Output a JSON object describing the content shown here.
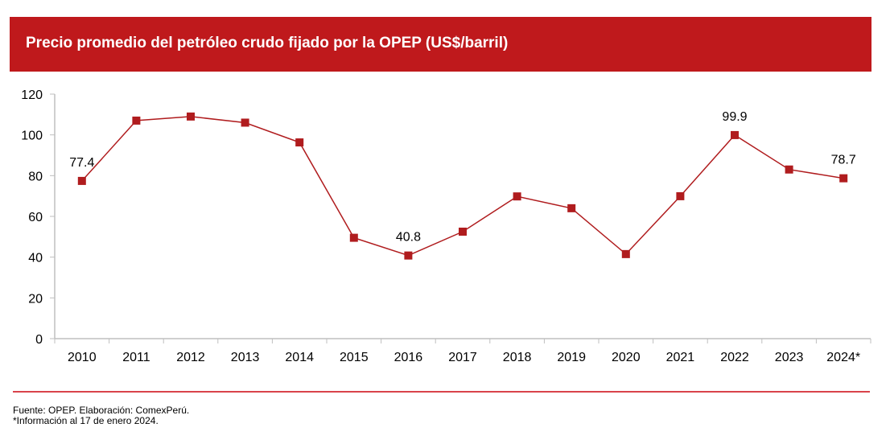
{
  "header": {
    "title": "Precio promedio del petróleo crudo fijado por la OPEP (US$/barril)"
  },
  "chart_data": {
    "type": "line",
    "title": "Precio promedio del petróleo crudo fijado por la OPEP (US$/barril)",
    "xlabel": "",
    "ylabel": "",
    "categories": [
      "2010",
      "2011",
      "2012",
      "2013",
      "2014",
      "2015",
      "2016",
      "2017",
      "2018",
      "2019",
      "2020",
      "2021",
      "2022",
      "2023",
      "2024*"
    ],
    "series": [
      {
        "name": "Precio promedio OPEP (US$/barril)",
        "values": [
          77.4,
          107.0,
          109.0,
          106.0,
          96.3,
          49.5,
          40.8,
          52.5,
          69.8,
          64.0,
          41.5,
          69.9,
          99.9,
          83.0,
          78.7
        ],
        "color": "#b01c1e",
        "marker": "square"
      }
    ],
    "data_labels": [
      {
        "category": "2010",
        "text": "77.4"
      },
      {
        "category": "2016",
        "text": "40.8"
      },
      {
        "category": "2022",
        "text": "99.9"
      },
      {
        "category": "2024*",
        "text": "78.7"
      }
    ],
    "ylim": [
      0,
      120
    ],
    "yticks": [
      0,
      20,
      40,
      60,
      80,
      100,
      120
    ],
    "grid": false,
    "legend": "none"
  },
  "footer": {
    "source": "Fuente: OPEP. Elaboración: ComexPerú.",
    "note": "*Información al 17 de enero 2024."
  },
  "colors": {
    "banner": "#bf191c",
    "series": "#b01c1e",
    "separator": "#d9434a",
    "axis": "#bfbfbf"
  }
}
